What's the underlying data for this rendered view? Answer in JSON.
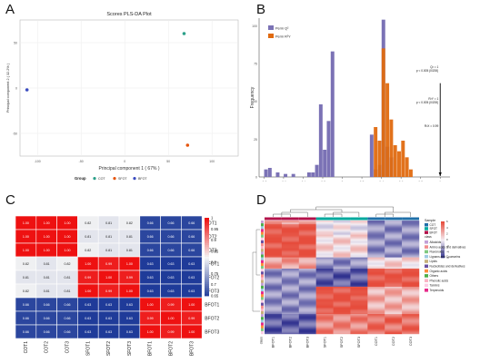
{
  "panels": {
    "a": {
      "letter": "A"
    },
    "b": {
      "letter": "B"
    },
    "c": {
      "letter": "C"
    },
    "d": {
      "letter": "D"
    }
  },
  "chart_data": [
    {
      "id": "A",
      "type": "scatter",
      "title": "Scores PLS-DA Plot",
      "xlabel": "Principal component 1 ( 67% )",
      "ylabel": "Principal component 2 ( 32.2% )",
      "xlim": [
        -120,
        130
      ],
      "ylim": [
        -75,
        75
      ],
      "xticks": [
        -100,
        -50,
        0,
        50,
        100
      ],
      "yticks": [
        -50,
        0,
        50
      ],
      "grid": true,
      "legend_title": "Group",
      "legend_position": "bottom",
      "series": [
        {
          "name": "COT",
          "color": "#2ca089",
          "points": [
            [
              68,
              60
            ]
          ]
        },
        {
          "name": "SFOT",
          "color": "#e6550d",
          "points": [
            [
              72,
              -63
            ]
          ]
        },
        {
          "name": "BFOT",
          "color": "#3b4cc0",
          "points": [
            [
              -112,
              -2
            ]
          ]
        }
      ]
    },
    {
      "id": "B",
      "type": "bar",
      "xlabel": "Permutations",
      "ylabel": "Frequency",
      "xlim": [
        -0.85,
        1.1
      ],
      "ylim": [
        0,
        105
      ],
      "xticks": [
        -0.8,
        -0.6,
        -0.4,
        -0.2,
        0,
        0.2,
        0.4,
        0.6,
        0.8,
        1
      ],
      "yticks": [
        0,
        25,
        50,
        75,
        100
      ],
      "legend_position": "top-left",
      "series": [
        {
          "name": "Perm Q²",
          "color": "#7b72b5",
          "bins": [
            [
              -0.78,
              5
            ],
            [
              -0.74,
              6
            ],
            [
              -0.66,
              3
            ],
            [
              -0.58,
              2
            ],
            [
              -0.5,
              2
            ],
            [
              -0.34,
              3
            ],
            [
              -0.3,
              3
            ],
            [
              -0.26,
              8
            ],
            [
              -0.22,
              48
            ],
            [
              -0.18,
              18
            ],
            [
              -0.14,
              37
            ],
            [
              -0.1,
              83
            ],
            [
              0.3,
              28
            ],
            [
              0.34,
              5
            ],
            [
              0.38,
              8
            ],
            [
              0.42,
              104
            ],
            [
              0.46,
              20
            ],
            [
              0.5,
              13
            ]
          ]
        },
        {
          "name": "Perm R²Y",
          "color": "#e06a10",
          "bins": [
            [
              0.34,
              33
            ],
            [
              0.38,
              24
            ],
            [
              0.42,
              85
            ],
            [
              0.46,
              62
            ],
            [
              0.5,
              38
            ],
            [
              0.54,
              21
            ],
            [
              0.58,
              17
            ],
            [
              0.62,
              24
            ],
            [
              0.66,
              13
            ],
            [
              0.7,
              5
            ]
          ]
        }
      ],
      "annotations": [
        {
          "line1": "Q² = 1",
          "line2": "p < 0.005 (0/200)"
        },
        {
          "line1": "R²Y = 1",
          "line2": "p < 0.005 (0/200)"
        },
        {
          "line1": "R²X = 0.99",
          "line2": ""
        }
      ]
    },
    {
      "id": "C",
      "type": "heatmap",
      "rows": [
        "COT1",
        "COT2",
        "COT3",
        "SFOT1",
        "SFOT2",
        "SFOT3",
        "BFOT1",
        "BFOT2",
        "BFOT3"
      ],
      "cols": [
        "COT1",
        "COT2",
        "COT3",
        "SFOT1",
        "SFOT2",
        "SFOT3",
        "BFOT1",
        "BFOT2",
        "BFOT3"
      ],
      "values": [
        [
          1.0,
          1.0,
          1.0,
          0.82,
          0.81,
          0.82,
          0.66,
          0.66,
          0.66
        ],
        [
          1.0,
          1.0,
          1.0,
          0.81,
          0.81,
          0.81,
          0.66,
          0.66,
          0.66
        ],
        [
          1.0,
          1.0,
          1.0,
          0.82,
          0.81,
          0.81,
          0.66,
          0.66,
          0.66
        ],
        [
          0.82,
          0.81,
          0.82,
          1.0,
          0.99,
          1.0,
          0.63,
          0.63,
          0.63
        ],
        [
          0.81,
          0.81,
          0.81,
          0.99,
          1.0,
          0.99,
          0.63,
          0.63,
          0.63
        ],
        [
          0.82,
          0.81,
          0.81,
          1.0,
          0.99,
          1.0,
          0.63,
          0.63,
          0.63
        ],
        [
          0.66,
          0.66,
          0.66,
          0.63,
          0.63,
          0.63,
          1.0,
          0.99,
          1.0
        ],
        [
          0.66,
          0.66,
          0.66,
          0.63,
          0.63,
          0.63,
          0.99,
          1.0,
          0.99
        ],
        [
          0.66,
          0.66,
          0.66,
          0.63,
          0.63,
          0.63,
          1.0,
          0.99,
          1.0
        ]
      ],
      "colorbar": {
        "min": 0.65,
        "max": 1,
        "ticks": [
          "1",
          "0.95",
          "0.9",
          "0.85",
          "0.8",
          "0.75",
          "0.7",
          "0.65"
        ]
      },
      "colors": {
        "low": "#1f3b99",
        "mid": "#f5f5f5",
        "high": "#ee1111"
      }
    },
    {
      "id": "D",
      "type": "heatmap",
      "samples": [
        "BFOT1",
        "BFOT2",
        "BFOT3",
        "SFOT1",
        "SFOT2",
        "SFOT3",
        "COT1",
        "COT2",
        "COT3"
      ],
      "row_label": "class",
      "sample_groups": [
        {
          "name": "COT",
          "color": "#1f6fa8"
        },
        {
          "name": "SFOT",
          "color": "#00a89d"
        },
        {
          "name": "BFOT",
          "color": "#b3124a"
        }
      ],
      "group_colors_by_column": [
        "#b3124a",
        "#b3124a",
        "#b3124a",
        "#00a89d",
        "#00a89d",
        "#00a89d",
        "#1f6fa8",
        "#1f6fa8",
        "#1f6fa8"
      ],
      "colorbar": {
        "ticks": [
          "6",
          "4",
          "2",
          "0",
          "-2",
          "-4",
          "-6"
        ]
      },
      "legend_sample_title": "Sample",
      "legend_class_title": "class",
      "classes": [
        {
          "name": "Alkaloids",
          "color": "#c3a0d6"
        },
        {
          "name": "Amino acids and derivatives",
          "color": "#f28d8d"
        },
        {
          "name": "Flavonoids",
          "color": "#7fc97f"
        },
        {
          "name": "Lignans and Coumarins",
          "color": "#9ecae1"
        },
        {
          "name": "Lipids",
          "color": "#c6b07a"
        },
        {
          "name": "Nucleotides and derivatives",
          "color": "#6a51a3"
        },
        {
          "name": "Organic acids",
          "color": "#fd8d3c"
        },
        {
          "name": "Others",
          "color": "#4daf4a"
        },
        {
          "name": "Phenolic acids",
          "color": "#fbb4c4"
        },
        {
          "name": "Tannins",
          "color": "#fccde5"
        },
        {
          "name": "Terpenoids",
          "color": "#e7298a"
        }
      ],
      "blocks": [
        {
          "rows": [
            0,
            0.03
          ],
          "pattern": [
            1,
            1,
            1,
            0,
            0,
            0,
            -1,
            -1,
            -1
          ]
        },
        {
          "rows": [
            0.03,
            0.12
          ],
          "pattern": [
            2,
            2,
            2,
            0,
            0,
            0,
            -1,
            -1,
            -1
          ]
        },
        {
          "rows": [
            0.12,
            0.32
          ],
          "pattern": [
            2,
            2,
            2,
            0.3,
            0.3,
            0.3,
            -1,
            -1,
            -1
          ]
        },
        {
          "rows": [
            0.32,
            0.42
          ],
          "pattern": [
            1,
            1,
            1,
            -1,
            -1,
            -1,
            0.3,
            0.3,
            0.3
          ]
        },
        {
          "rows": [
            0.42,
            0.58
          ],
          "pattern": [
            -1,
            -1,
            -1,
            -1.5,
            -1.5,
            -1.5,
            2,
            2,
            2
          ]
        },
        {
          "rows": [
            0.58,
            0.82
          ],
          "pattern": [
            -1,
            -1,
            -1,
            2,
            2,
            2,
            0.8,
            0.8,
            0.8
          ]
        },
        {
          "rows": [
            0.82,
            1.0
          ],
          "pattern": [
            -1.5,
            -1.5,
            -1.5,
            1.3,
            1.3,
            1.3,
            1.6,
            1.6,
            1.6
          ]
        }
      ]
    }
  ]
}
